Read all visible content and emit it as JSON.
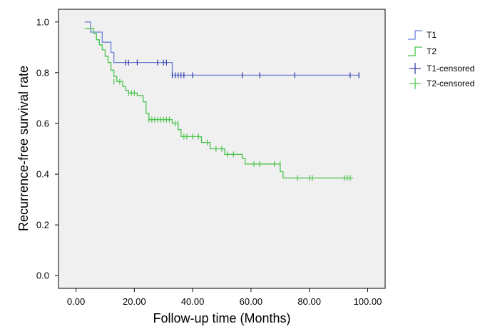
{
  "chart_data": {
    "type": "line",
    "title": "",
    "xlabel": "Follow-up time (Months)",
    "ylabel": "Recurrence-free survival rate",
    "xlim": [
      -6,
      106
    ],
    "ylim": [
      -0.05,
      1.05
    ],
    "x_ticks": [
      0,
      20,
      40,
      60,
      80,
      100
    ],
    "x_tick_labels": [
      "0.00",
      "20.00",
      "40.00",
      "60.00",
      "80.00",
      "100.00"
    ],
    "y_ticks": [
      0.0,
      0.2,
      0.4,
      0.6,
      0.8,
      1.0
    ],
    "y_tick_labels": [
      "0.0",
      "0.2",
      "0.4",
      "0.6",
      "0.8",
      "1.0"
    ],
    "grid": false,
    "legend_position": "right",
    "plot_background": "#f0f0f0",
    "series": [
      {
        "name": "T1",
        "color": "#6e7fd6",
        "step": [
          [
            3,
            1.0
          ],
          [
            5,
            1.0
          ],
          [
            5,
            0.96
          ],
          [
            9,
            0.96
          ],
          [
            9,
            0.92
          ],
          [
            12,
            0.92
          ],
          [
            12,
            0.88
          ],
          [
            13,
            0.88
          ],
          [
            13,
            0.84
          ],
          [
            33,
            0.84
          ],
          [
            33,
            0.79
          ],
          [
            97,
            0.79
          ]
        ]
      },
      {
        "name": "T2",
        "color": "#49c24a",
        "step": [
          [
            3,
            0.975
          ],
          [
            6,
            0.975
          ],
          [
            6,
            0.955
          ],
          [
            7,
            0.955
          ],
          [
            7,
            0.93
          ],
          [
            8,
            0.93
          ],
          [
            8,
            0.91
          ],
          [
            9,
            0.91
          ],
          [
            9,
            0.89
          ],
          [
            10,
            0.89
          ],
          [
            10,
            0.865
          ],
          [
            11,
            0.865
          ],
          [
            11,
            0.84
          ],
          [
            12,
            0.84
          ],
          [
            12,
            0.81
          ],
          [
            13,
            0.81
          ],
          [
            13,
            0.785
          ],
          [
            14,
            0.785
          ],
          [
            14,
            0.765
          ],
          [
            16,
            0.765
          ],
          [
            16,
            0.745
          ],
          [
            17,
            0.745
          ],
          [
            17,
            0.73
          ],
          [
            18,
            0.73
          ],
          [
            18,
            0.72
          ],
          [
            21,
            0.72
          ],
          [
            21,
            0.71
          ],
          [
            23,
            0.71
          ],
          [
            23,
            0.685
          ],
          [
            24,
            0.685
          ],
          [
            24,
            0.64
          ],
          [
            25,
            0.64
          ],
          [
            25,
            0.615
          ],
          [
            33,
            0.615
          ],
          [
            33,
            0.6
          ],
          [
            35,
            0.6
          ],
          [
            35,
            0.575
          ],
          [
            36,
            0.575
          ],
          [
            36,
            0.548
          ],
          [
            43,
            0.548
          ],
          [
            43,
            0.525
          ],
          [
            46,
            0.525
          ],
          [
            46,
            0.5
          ],
          [
            51,
            0.5
          ],
          [
            51,
            0.478
          ],
          [
            57,
            0.478
          ],
          [
            57,
            0.462
          ],
          [
            58,
            0.462
          ],
          [
            58,
            0.44
          ],
          [
            70,
            0.44
          ],
          [
            70,
            0.41
          ],
          [
            71,
            0.41
          ],
          [
            71,
            0.385
          ],
          [
            95,
            0.385
          ]
        ]
      },
      {
        "name": "T1-censored",
        "color": "#2b3aa6",
        "points": [
          [
            17,
            0.84
          ],
          [
            18,
            0.84
          ],
          [
            21,
            0.84
          ],
          [
            28,
            0.84
          ],
          [
            30,
            0.84
          ],
          [
            31,
            0.84
          ],
          [
            33,
            0.79
          ],
          [
            34,
            0.79
          ],
          [
            35,
            0.79
          ],
          [
            36,
            0.79
          ],
          [
            37,
            0.79
          ],
          [
            40,
            0.79
          ],
          [
            57,
            0.79
          ],
          [
            63,
            0.79
          ],
          [
            75,
            0.79
          ],
          [
            94,
            0.79
          ],
          [
            97,
            0.79
          ]
        ]
      },
      {
        "name": "T2-censored",
        "color": "#49c24a",
        "points": [
          [
            13,
            0.765
          ],
          [
            15,
            0.765
          ],
          [
            18,
            0.72
          ],
          [
            19,
            0.72
          ],
          [
            20,
            0.72
          ],
          [
            25,
            0.615
          ],
          [
            26,
            0.615
          ],
          [
            27,
            0.615
          ],
          [
            28,
            0.615
          ],
          [
            29,
            0.615
          ],
          [
            30,
            0.615
          ],
          [
            31,
            0.615
          ],
          [
            32,
            0.615
          ],
          [
            34,
            0.6
          ],
          [
            35,
            0.6
          ],
          [
            37,
            0.548
          ],
          [
            38,
            0.548
          ],
          [
            40,
            0.548
          ],
          [
            42,
            0.548
          ],
          [
            45,
            0.525
          ],
          [
            48,
            0.5
          ],
          [
            50,
            0.5
          ],
          [
            52,
            0.478
          ],
          [
            54,
            0.478
          ],
          [
            61,
            0.44
          ],
          [
            63,
            0.44
          ],
          [
            68,
            0.44
          ],
          [
            70,
            0.44
          ],
          [
            76,
            0.385
          ],
          [
            80,
            0.385
          ],
          [
            81,
            0.385
          ],
          [
            92,
            0.385
          ],
          [
            93,
            0.385
          ],
          [
            94,
            0.385
          ]
        ]
      }
    ]
  }
}
